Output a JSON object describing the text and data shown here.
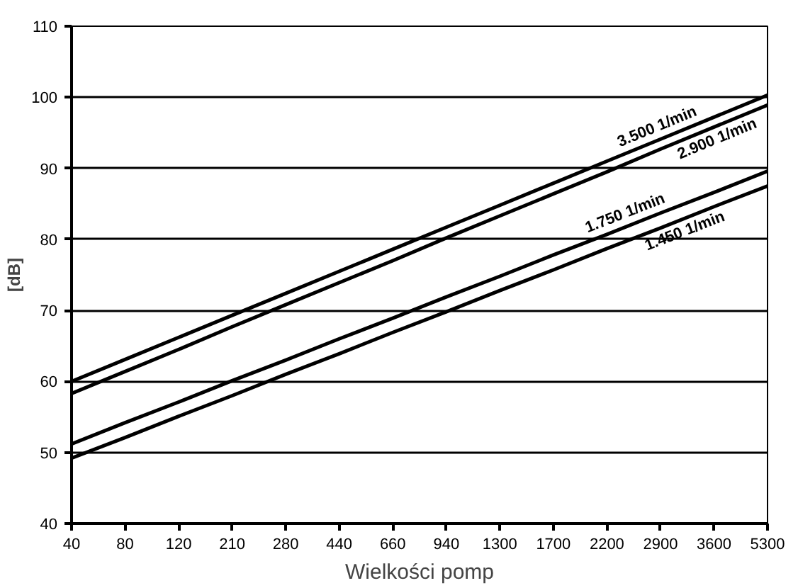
{
  "chart_data": {
    "type": "line",
    "xlabel": "Wielkości pomp",
    "ylabel": "[dB]",
    "categories": [
      "40",
      "80",
      "120",
      "210",
      "280",
      "440",
      "660",
      "940",
      "1300",
      "1700",
      "2200",
      "2900",
      "3600",
      "5300"
    ],
    "ylim": [
      40,
      110
    ],
    "yticks": [
      40,
      50,
      60,
      70,
      80,
      90,
      100,
      110
    ],
    "grid": "y",
    "legend": false,
    "marker": "none",
    "line_style": "solid",
    "series": [
      {
        "name": "3.500 1/min",
        "color": "#000000",
        "values": [
          60.0,
          63.1,
          66.2,
          69.3,
          72.4,
          75.5,
          78.6,
          81.7,
          84.8,
          87.9,
          91.0,
          94.1,
          97.2,
          100.3
        ]
      },
      {
        "name": "2.900 1/min",
        "color": "#000000",
        "values": [
          58.3,
          61.4,
          64.5,
          67.7,
          70.8,
          73.9,
          77.0,
          80.2,
          83.3,
          86.4,
          89.5,
          92.7,
          95.8,
          98.9
        ]
      },
      {
        "name": "1.750 1/min",
        "color": "#000000",
        "values": [
          51.2,
          54.2,
          57.1,
          60.1,
          63.0,
          66.0,
          68.9,
          71.9,
          74.8,
          77.8,
          80.7,
          83.7,
          86.6,
          89.6
        ]
      },
      {
        "name": "1.450 1/min",
        "color": "#000000",
        "values": [
          49.2,
          52.1,
          55.1,
          58.0,
          61.0,
          63.9,
          66.9,
          69.8,
          72.8,
          75.7,
          78.7,
          81.6,
          84.6,
          87.5
        ]
      }
    ]
  }
}
